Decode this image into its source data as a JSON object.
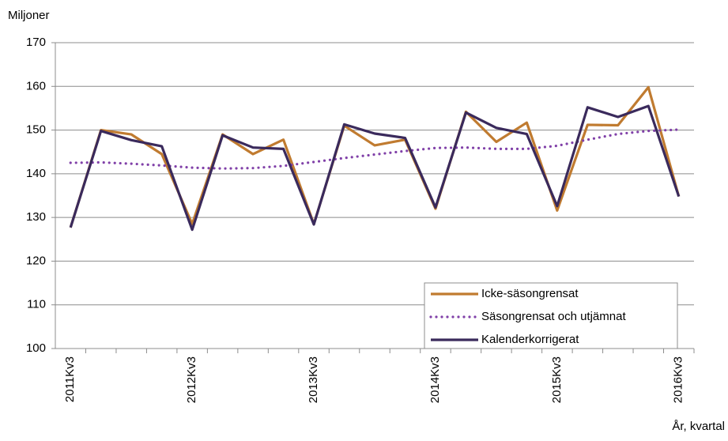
{
  "chart_data": {
    "type": "line",
    "ylabel": "Miljoner",
    "xlabel": "År, kvartal",
    "categories": [
      "2011Kv3",
      null,
      null,
      null,
      "2012Kv3",
      null,
      null,
      null,
      "2013Kv3",
      null,
      null,
      null,
      "2014Kv3",
      null,
      null,
      null,
      "2015Kv3",
      null,
      null,
      null,
      "2016Kv3"
    ],
    "series": [
      {
        "name": "Icke-säsongrensat",
        "color": "#c07b30",
        "style": "solid",
        "values": [
          127.7,
          150,
          149,
          144.5,
          128.5,
          149,
          144.5,
          147.8,
          128.5,
          151,
          146.5,
          147.8,
          132,
          154.2,
          147.3,
          151.7,
          131.6,
          151.2,
          151.1,
          159.8,
          134.8
        ]
      },
      {
        "name": "Säsongrensat och utjämnat",
        "color": "#8040a8",
        "style": "dotted",
        "values": [
          142.5,
          142.6,
          142.3,
          141.9,
          141.4,
          141.2,
          141.3,
          141.8,
          142.7,
          143.6,
          144.4,
          145.2,
          145.9,
          146,
          145.7,
          145.7,
          146.4,
          147.8,
          149.1,
          149.8,
          150.1
        ]
      },
      {
        "name": "Kalenderkorrigerat",
        "color": "#3a2a5c",
        "style": "solid",
        "values": [
          127.7,
          149.8,
          147.7,
          146.3,
          127.2,
          148.8,
          146,
          145.7,
          128.4,
          151.3,
          149.2,
          148.2,
          132.3,
          154,
          150.5,
          149.1,
          132.6,
          155.2,
          153,
          155.5,
          134.8
        ]
      }
    ],
    "ylim": [
      100,
      170
    ],
    "yticks": [
      100,
      110,
      120,
      130,
      140,
      150,
      160,
      170
    ],
    "grid": true,
    "legend": "lower right"
  }
}
